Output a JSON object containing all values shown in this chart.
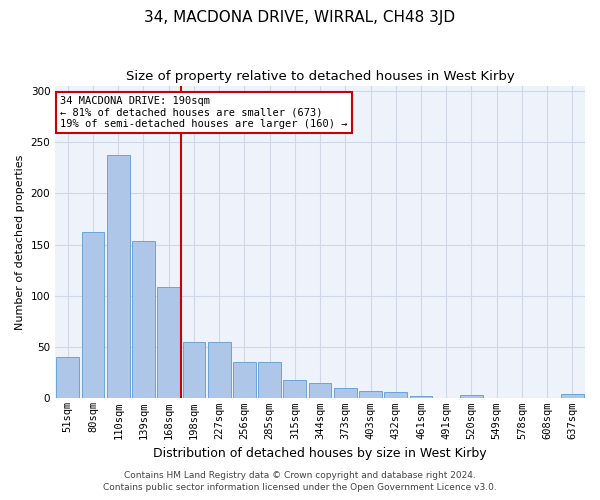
{
  "title": "34, MACDONA DRIVE, WIRRAL, CH48 3JD",
  "subtitle": "Size of property relative to detached houses in West Kirby",
  "xlabel": "Distribution of detached houses by size in West Kirby",
  "ylabel": "Number of detached properties",
  "footer_line1": "Contains HM Land Registry data © Crown copyright and database right 2024.",
  "footer_line2": "Contains public sector information licensed under the Open Government Licence v3.0.",
  "categories": [
    "51sqm",
    "80sqm",
    "110sqm",
    "139sqm",
    "168sqm",
    "198sqm",
    "227sqm",
    "256sqm",
    "285sqm",
    "315sqm",
    "344sqm",
    "373sqm",
    "403sqm",
    "432sqm",
    "461sqm",
    "491sqm",
    "520sqm",
    "549sqm",
    "578sqm",
    "608sqm",
    "637sqm"
  ],
  "values": [
    40,
    162,
    237,
    153,
    109,
    55,
    55,
    35,
    35,
    18,
    15,
    10,
    7,
    6,
    2,
    0,
    3,
    0,
    0,
    0,
    4
  ],
  "bar_color": "#aec6e8",
  "bar_edge_color": "#5b9bd5",
  "vline_index": 5,
  "vline_color": "#cc0000",
  "annotation_text_line1": "34 MACDONA DRIVE: 190sqm",
  "annotation_text_line2": "← 81% of detached houses are smaller (673)",
  "annotation_text_line3": "19% of semi-detached houses are larger (160) →",
  "annotation_box_color": "#ffffff",
  "annotation_box_edge": "#cc0000",
  "ylim": [
    0,
    305
  ],
  "yticks": [
    0,
    50,
    100,
    150,
    200,
    250,
    300
  ],
  "grid_color": "#d0d8e8",
  "background_color": "#eef2fb",
  "title_fontsize": 11,
  "subtitle_fontsize": 9.5,
  "ylabel_fontsize": 8,
  "xlabel_fontsize": 9,
  "tick_fontsize": 7.5,
  "footer_fontsize": 6.5,
  "annotation_fontsize": 7.5
}
